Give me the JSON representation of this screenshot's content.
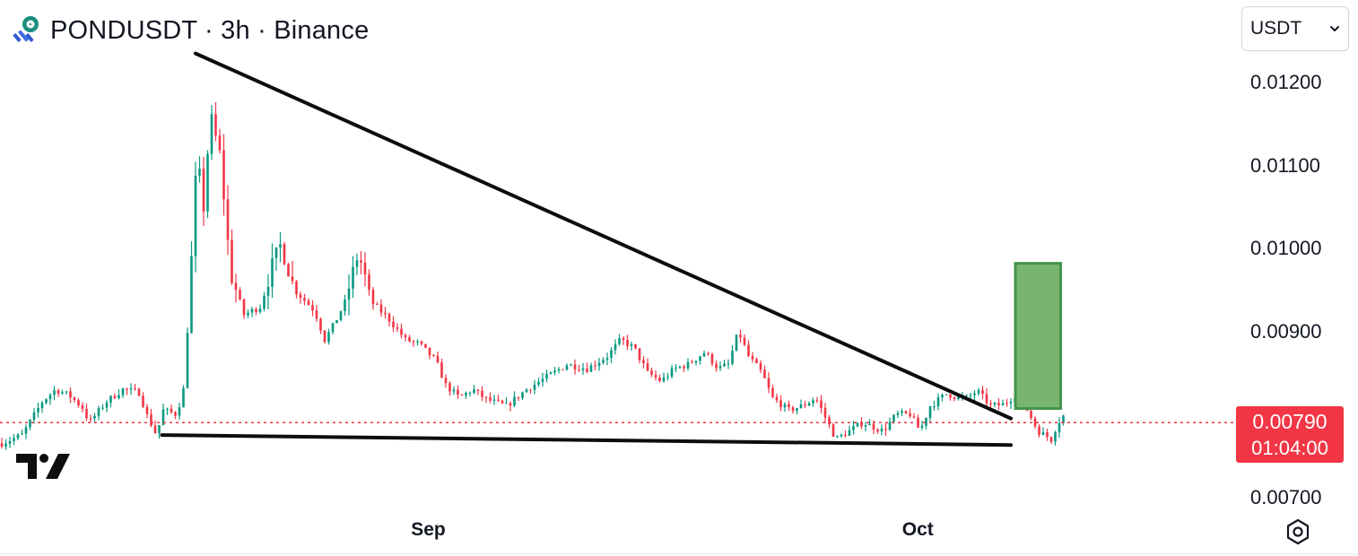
{
  "header": {
    "title": "PONDUSDT · 3h · Binance"
  },
  "currency_select": {
    "value": "USDT",
    "icon": "chevron-down-icon"
  },
  "price_axis": {
    "ticks": [
      "0.01200",
      "0.01100",
      "0.01000",
      "0.00900",
      "0.00700"
    ]
  },
  "time_axis": {
    "ticks": [
      "Sep",
      "Oct"
    ]
  },
  "last_price": {
    "value": "0.00790",
    "countdown": "01:04:00"
  },
  "colors": {
    "up": "#089981",
    "down": "#f23645",
    "target_box": "#79b473",
    "target_box_border": "#43944a",
    "trendline": "#0d0d0d",
    "price_line": "#f23645"
  },
  "chart_data": {
    "type": "candlestick",
    "symbol": "PONDUSDT",
    "interval": "3h",
    "exchange": "Binance",
    "ylim": [
      0.0067,
      0.0123
    ],
    "x_ticks": [
      "Sep",
      "Oct"
    ],
    "last_price": 0.0079,
    "series": [
      {
        "points": [
          [
            0.0,
            0.00765
          ],
          [
            3.0,
            0.00775
          ],
          [
            6.0,
            0.00815
          ],
          [
            8.0,
            0.0083
          ],
          [
            10.0,
            0.00823
          ],
          [
            12.0,
            0.00808
          ],
          [
            13.0,
            0.0079
          ],
          [
            15.5,
            0.00815
          ],
          [
            18.0,
            0.0083
          ],
          [
            20.5,
            0.00826
          ],
          [
            21.5,
            0.008
          ],
          [
            23.0,
            0.00775
          ],
          [
            24.0,
            0.00805
          ],
          [
            26.0,
            0.008
          ],
          [
            27.0,
            0.0083
          ],
          [
            27.8,
            0.00925
          ],
          [
            29.0,
            0.0111
          ],
          [
            30.0,
            0.0105
          ],
          [
            31.0,
            0.0116
          ],
          [
            32.5,
            0.0111
          ],
          [
            34.0,
            0.0097
          ],
          [
            35.0,
            0.00945
          ],
          [
            36.0,
            0.0092
          ],
          [
            38.5,
            0.0093
          ],
          [
            40.0,
            0.00975
          ],
          [
            41.5,
            0.01005
          ],
          [
            43.5,
            0.0095
          ],
          [
            46.5,
            0.00925
          ],
          [
            48.0,
            0.0089
          ],
          [
            49.5,
            0.0091
          ],
          [
            51.0,
            0.00935
          ],
          [
            53.0,
            0.00995
          ],
          [
            55.0,
            0.00935
          ],
          [
            57.5,
            0.00915
          ],
          [
            60.0,
            0.0089
          ],
          [
            62.0,
            0.00885
          ],
          [
            64.5,
            0.00865
          ],
          [
            66.0,
            0.00835
          ],
          [
            68.0,
            0.0082
          ],
          [
            70.0,
            0.0083
          ],
          [
            72.0,
            0.00818
          ],
          [
            75.0,
            0.0081
          ],
          [
            78.0,
            0.0083
          ],
          [
            81.0,
            0.00845
          ],
          [
            84.0,
            0.0086
          ],
          [
            87.0,
            0.00855
          ],
          [
            90.0,
            0.0087
          ],
          [
            92.0,
            0.0089
          ],
          [
            94.0,
            0.0088
          ],
          [
            96.0,
            0.0085
          ],
          [
            98.0,
            0.0084
          ],
          [
            100.0,
            0.00855
          ],
          [
            102.0,
            0.0086
          ],
          [
            104.5,
            0.00875
          ],
          [
            106.5,
            0.00855
          ],
          [
            108.0,
            0.0086
          ],
          [
            109.5,
            0.009
          ],
          [
            111.0,
            0.0087
          ],
          [
            113.0,
            0.0085
          ],
          [
            114.5,
            0.0082
          ],
          [
            117.0,
            0.00805
          ],
          [
            119.0,
            0.0081
          ],
          [
            121.0,
            0.0082
          ],
          [
            122.5,
            0.00795
          ],
          [
            124.0,
            0.0077
          ],
          [
            126.0,
            0.0078
          ],
          [
            128.0,
            0.0079
          ],
          [
            131.0,
            0.0078
          ],
          [
            133.0,
            0.008
          ],
          [
            135.0,
            0.008
          ],
          [
            136.5,
            0.0078
          ],
          [
            138.0,
            0.0081
          ],
          [
            140.5,
            0.00825
          ],
          [
            142.0,
            0.0082
          ],
          [
            143.5,
            0.0082
          ],
          [
            145.0,
            0.00828
          ],
          [
            147.0,
            0.0081
          ],
          [
            149.0,
            0.00812
          ],
          [
            151.0,
            0.00826
          ],
          [
            152.0,
            0.00812
          ],
          [
            154.0,
            0.0078
          ],
          [
            156.0,
            0.0077
          ],
          [
            157.0,
            0.0079
          ],
          [
            158.0,
            0.008
          ]
        ]
      }
    ],
    "annotations": {
      "resistance_line": [
        [
          28.8,
          0.01235
        ],
        [
          150.0,
          0.00795
        ]
      ],
      "support_line": [
        [
          23.8,
          0.00775
        ],
        [
          150.0,
          0.00763
        ]
      ],
      "target_box": {
        "x_range": [
          150.0,
          157.0
        ],
        "y_range": [
          0.00807,
          0.00982
        ]
      }
    }
  }
}
